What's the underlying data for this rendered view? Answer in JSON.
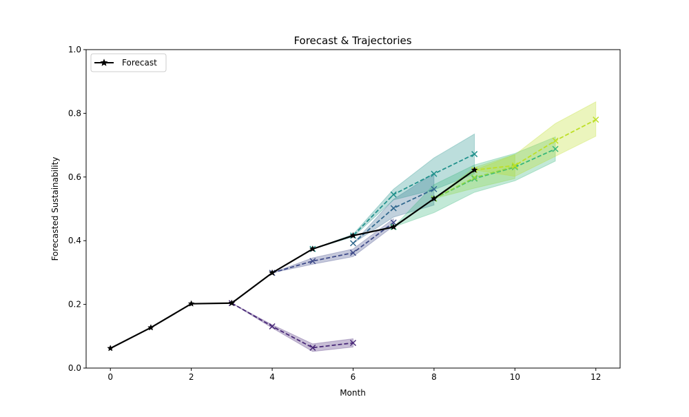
{
  "chart_data": {
    "type": "line",
    "title": "Forecast & Trajectories",
    "xlabel": "Month",
    "ylabel": "Forecasted Sustainability",
    "xlim": [
      -0.6,
      12.6
    ],
    "ylim": [
      0.0,
      1.0
    ],
    "xticks": [
      0,
      2,
      4,
      6,
      8,
      10,
      12
    ],
    "yticks": [
      0.0,
      0.2,
      0.4,
      0.6,
      0.8,
      1.0
    ],
    "grid": false,
    "legend": {
      "placement": "top-left",
      "entries": [
        "Forecast"
      ]
    },
    "series": [
      {
        "name": "Forecast",
        "color": "#000000",
        "style": "solid",
        "marker": "star",
        "x": [
          0,
          1,
          2,
          3,
          4,
          5,
          6,
          7,
          8,
          9
        ],
        "y": [
          0.062,
          0.127,
          0.202,
          0.204,
          0.299,
          0.374,
          0.416,
          0.443,
          0.532,
          0.622
        ]
      }
    ],
    "trajectories": [
      {
        "color": "#482878",
        "x": [
          3,
          4,
          5,
          6
        ],
        "y": [
          0.204,
          0.131,
          0.064,
          0.079
        ],
        "lower": [
          0.204,
          0.126,
          0.052,
          0.066
        ],
        "upper": [
          0.204,
          0.136,
          0.076,
          0.092
        ]
      },
      {
        "color": "#3e4a89",
        "x": [
          4,
          5,
          6,
          7
        ],
        "y": [
          0.299,
          0.336,
          0.362,
          0.457
        ],
        "lower": [
          0.299,
          0.326,
          0.35,
          0.446
        ],
        "upper": [
          0.299,
          0.346,
          0.374,
          0.469
        ]
      },
      {
        "color": "#31688e",
        "x": [
          6,
          7,
          8
        ],
        "y": [
          0.392,
          0.502,
          0.562
        ],
        "lower": [
          0.392,
          0.474,
          0.512
        ],
        "upper": [
          0.392,
          0.53,
          0.612
        ]
      },
      {
        "color": "#21918c",
        "x": [
          5,
          6,
          7,
          8,
          9
        ],
        "y": [
          0.374,
          0.416,
          0.545,
          0.61,
          0.672
        ],
        "lower": [
          0.374,
          0.412,
          0.528,
          0.56,
          0.61
        ],
        "upper": [
          0.374,
          0.42,
          0.562,
          0.66,
          0.735
        ]
      },
      {
        "color": "#35b779",
        "x": [
          7,
          8,
          9,
          10,
          11
        ],
        "y": [
          0.443,
          0.532,
          0.595,
          0.631,
          0.688
        ],
        "lower": [
          0.443,
          0.488,
          0.552,
          0.588,
          0.65
        ],
        "upper": [
          0.443,
          0.576,
          0.638,
          0.674,
          0.726
        ]
      },
      {
        "color": "#90d743",
        "x": [
          8,
          9,
          10
        ],
        "y": [
          0.532,
          0.598,
          0.633
        ],
        "lower": [
          0.532,
          0.565,
          0.595
        ],
        "upper": [
          0.532,
          0.63,
          0.671
        ]
      },
      {
        "color": "#bddf26",
        "x": [
          9,
          10,
          11,
          12
        ],
        "y": [
          0.622,
          0.636,
          0.714,
          0.78
        ],
        "lower": [
          0.622,
          0.602,
          0.665,
          0.728
        ],
        "upper": [
          0.622,
          0.67,
          0.768,
          0.836
        ]
      }
    ]
  }
}
